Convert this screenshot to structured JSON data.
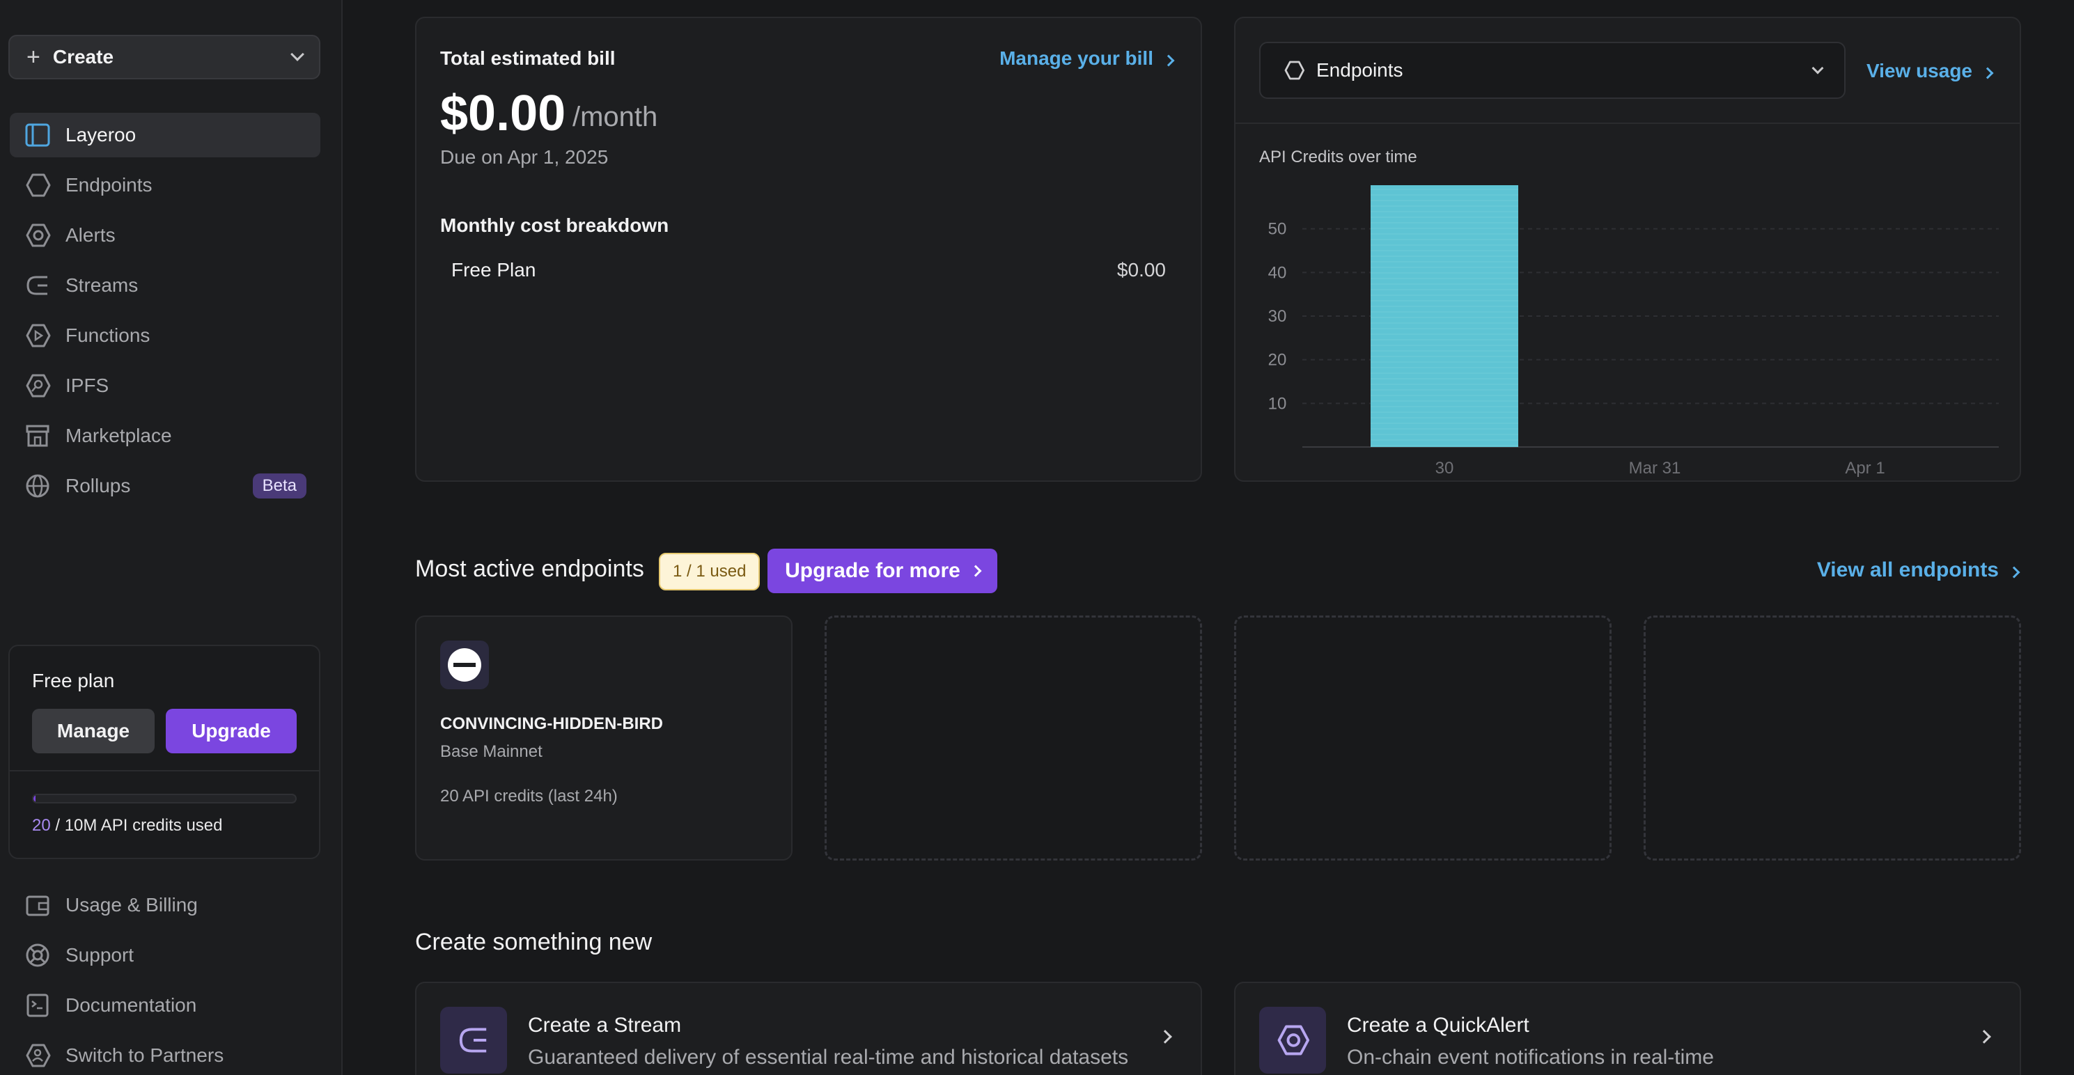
{
  "sidebar": {
    "create_label": "Create",
    "items": [
      {
        "label": "Layeroo",
        "icon": "layout-icon",
        "active": true
      },
      {
        "label": "Endpoints",
        "icon": "hexagon-icon"
      },
      {
        "label": "Alerts",
        "icon": "alert-ring-icon"
      },
      {
        "label": "Streams",
        "icon": "stream-icon"
      },
      {
        "label": "Functions",
        "icon": "play-hexagon-icon"
      },
      {
        "label": "IPFS",
        "icon": "ipfs-icon"
      },
      {
        "label": "Marketplace",
        "icon": "store-icon"
      },
      {
        "label": "Rollups",
        "icon": "globe-icon",
        "badge": "Beta"
      }
    ],
    "plan": {
      "title": "Free plan",
      "manage_label": "Manage",
      "upgrade_label": "Upgrade",
      "credits_used": "20",
      "credits_total": " / 10M API credits used",
      "progress_fraction": 2e-06
    },
    "bottom_items": [
      {
        "label": "Usage & Billing",
        "icon": "wallet-icon"
      },
      {
        "label": "Support",
        "icon": "lifebuoy-icon"
      },
      {
        "label": "Documentation",
        "icon": "docs-icon"
      },
      {
        "label": "Switch to Partners",
        "icon": "partners-icon"
      }
    ]
  },
  "bill": {
    "title": "Total estimated bill",
    "manage_link": "Manage your bill",
    "amount": "$0.00",
    "period": "/month",
    "due": "Due on Apr 1, 2025",
    "breakdown_title": "Monthly cost breakdown",
    "line_label": "Free Plan",
    "line_value": "$0.00"
  },
  "usage": {
    "select_value": "Endpoints",
    "view_usage_link": "View usage",
    "chart_title": "API Credits over time"
  },
  "chart_data": {
    "type": "bar",
    "title": "API Credits over time",
    "categories": [
      "30",
      "Mar 31",
      "Apr 1"
    ],
    "values": [
      60,
      0,
      0
    ],
    "yticks": [
      10,
      20,
      30,
      40,
      50
    ],
    "ylim": [
      0,
      60
    ],
    "grid": true,
    "bar_color": "#5ec4d4"
  },
  "endpoints": {
    "title": "Most active endpoints",
    "used_badge": "1 / 1 used",
    "upgrade_label": "Upgrade for more",
    "view_all_link": "View all endpoints",
    "cards": [
      {
        "name": "CONVINCING-HIDDEN-BIRD",
        "network": "Base Mainnet",
        "credits": "20 API credits (last 24h)"
      }
    ]
  },
  "create_new": {
    "title": "Create something new",
    "items": [
      {
        "title": "Create a Stream",
        "desc": "Guaranteed delivery of essential real-time and historical datasets",
        "icon": "stream-icon"
      },
      {
        "title": "Create a QuickAlert",
        "desc": "On-chain event notifications in real-time",
        "icon": "alert-ring-icon"
      }
    ]
  },
  "colors": {
    "accent": "#7b46e0",
    "link": "#5ab0e8",
    "bar": "#5ec4d4"
  }
}
